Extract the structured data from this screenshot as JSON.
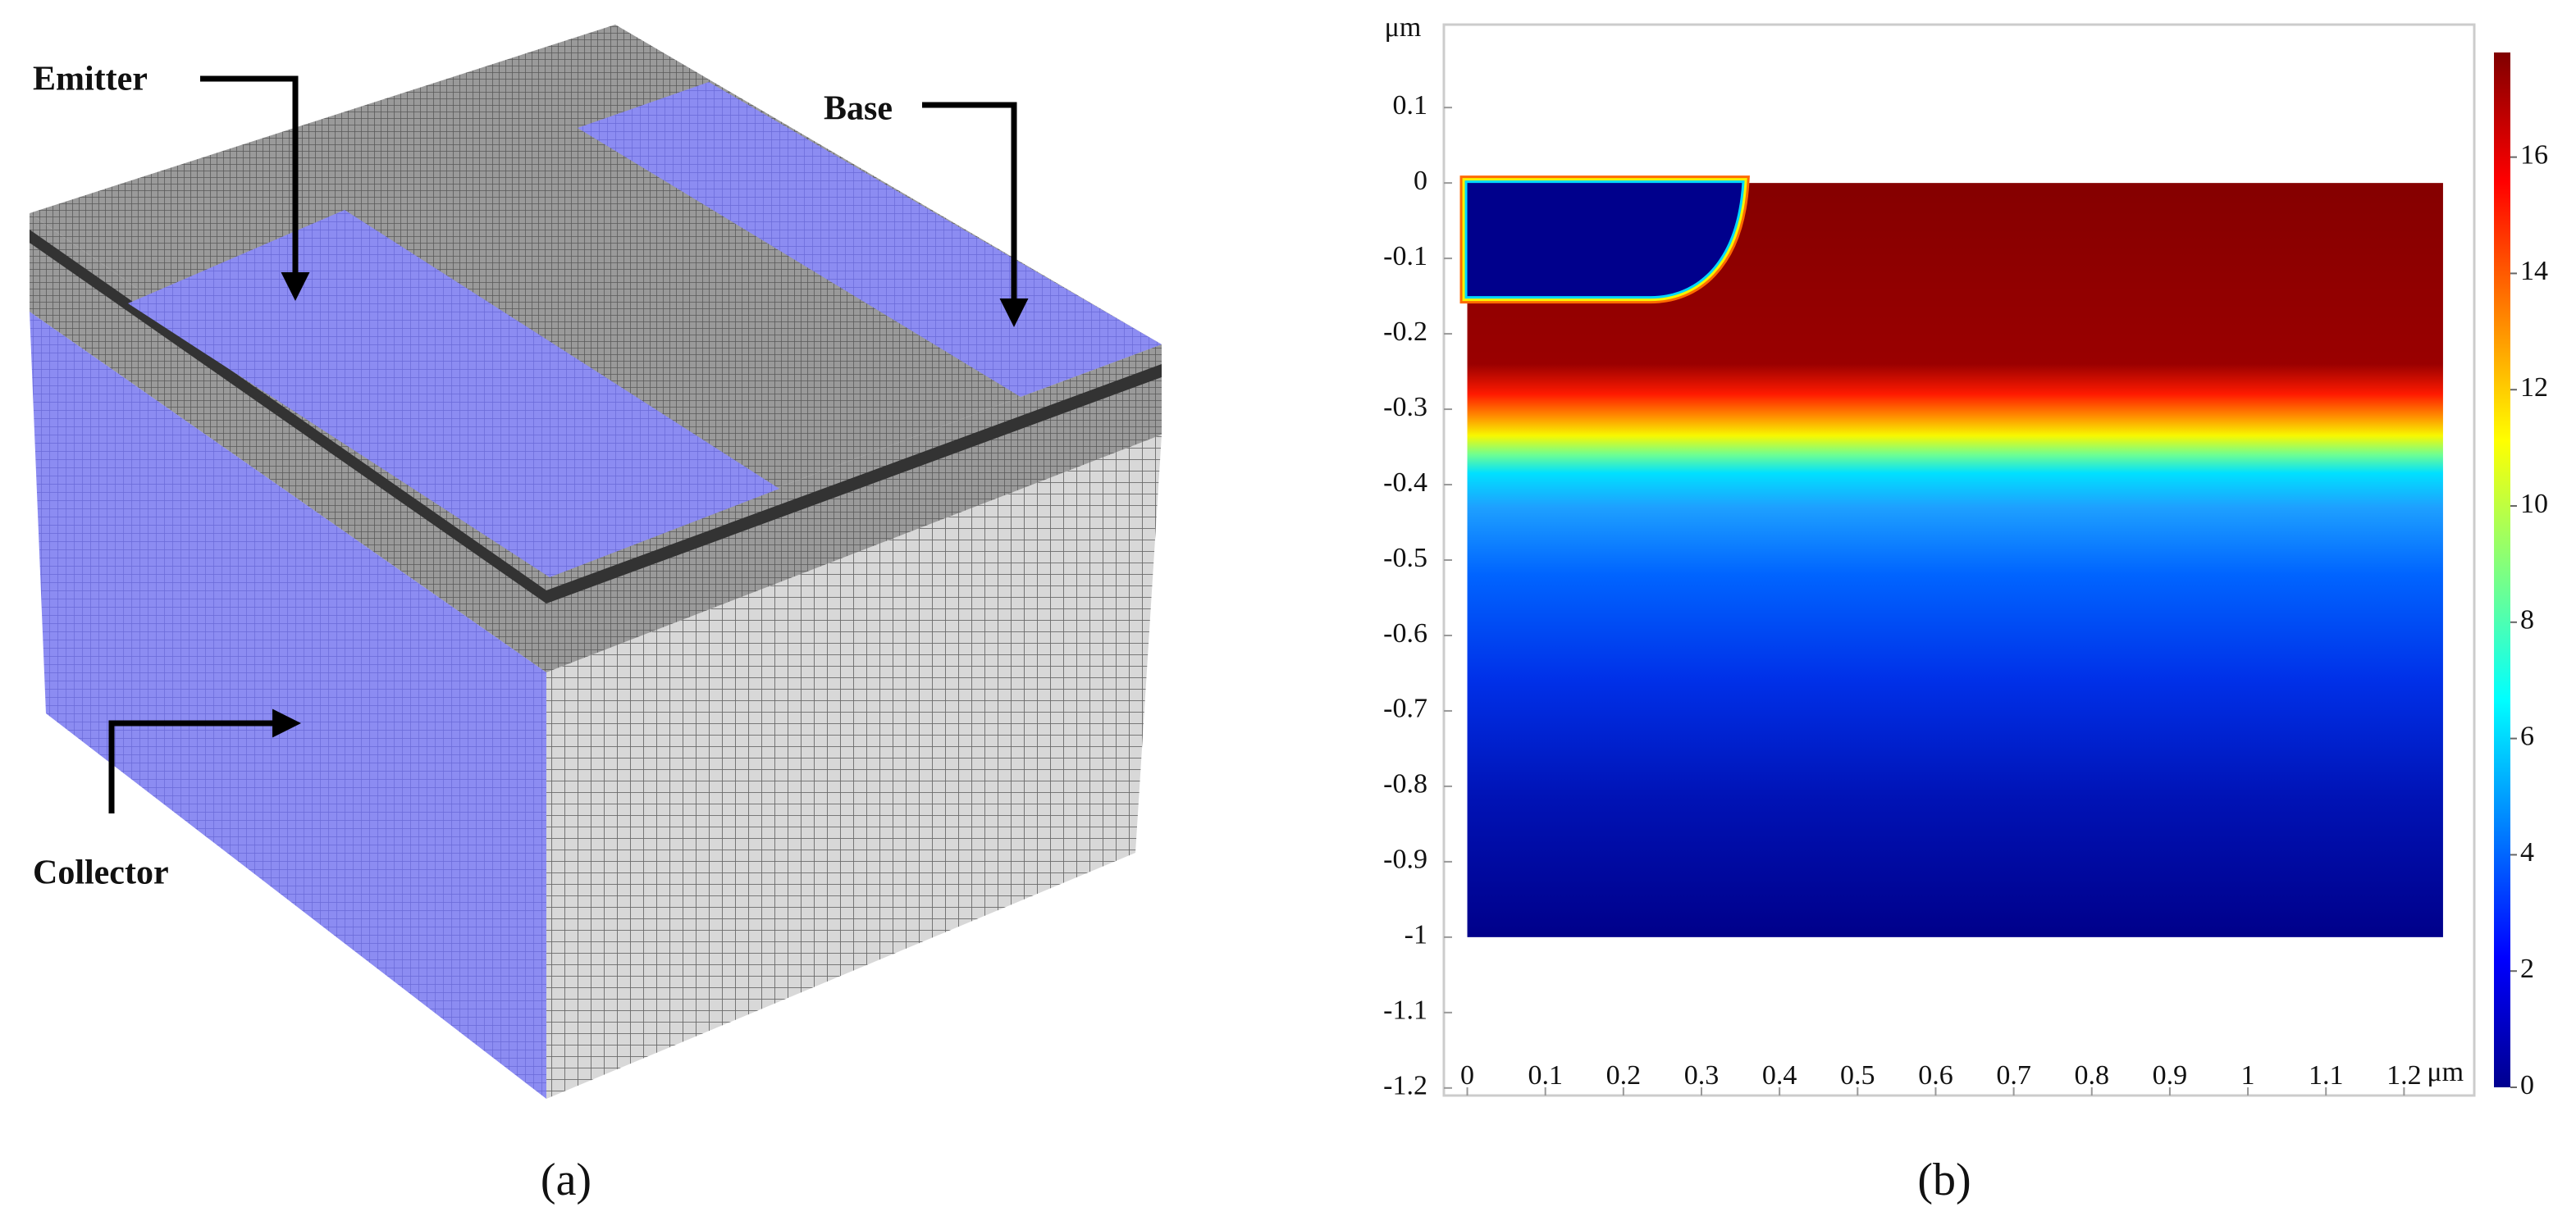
{
  "panel_a": {
    "labels": {
      "emitter": "Emitter",
      "base": "Base",
      "collector": "Collector"
    },
    "caption": "(a)"
  },
  "chart_data": {
    "type": "heatmap",
    "caption": "(b)",
    "x_unit": "μm",
    "y_unit": "μm",
    "xlim": [
      -0.03,
      1.29
    ],
    "ylim": [
      -1.21,
      0.21
    ],
    "xticks": [
      0,
      0.1,
      0.2,
      0.3,
      0.4,
      0.5,
      0.6,
      0.7,
      0.8,
      0.9,
      1,
      1.1,
      1.2
    ],
    "yticks": [
      0.1,
      0,
      -0.1,
      -0.2,
      -0.3,
      -0.4,
      -0.5,
      -0.6,
      -0.7,
      -0.8,
      -0.9,
      -1,
      -1.1,
      -1.2
    ],
    "field": {
      "x": [
        0,
        1.25
      ],
      "y": [
        -1,
        0
      ]
    },
    "colorbar": {
      "lim": [
        0,
        17.8
      ],
      "ticks": [
        0,
        2,
        4,
        6,
        8,
        10,
        12,
        14,
        16
      ]
    }
  }
}
